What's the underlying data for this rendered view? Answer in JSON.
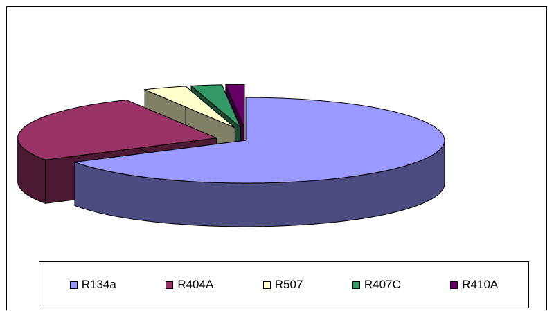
{
  "chart_data": {
    "type": "pie",
    "style": "3d-exploded",
    "title": "",
    "legend_position": "bottom",
    "series": [
      {
        "name": "R134a",
        "value": 66.5,
        "color": "#9999FF",
        "side_color": "#4C4C80"
      },
      {
        "name": "R404A",
        "value": 26.0,
        "color": "#993366",
        "side_color": "#4C1A33"
      },
      {
        "name": "R507",
        "value": 3.5,
        "color": "#FFFFCC",
        "side_color": "#808066"
      },
      {
        "name": "R407C",
        "value": 2.5,
        "color": "#339966",
        "side_color": "#1A4C33"
      },
      {
        "name": "R410A",
        "value": 1.5,
        "color": "#660066",
        "side_color": "#330033"
      }
    ]
  }
}
